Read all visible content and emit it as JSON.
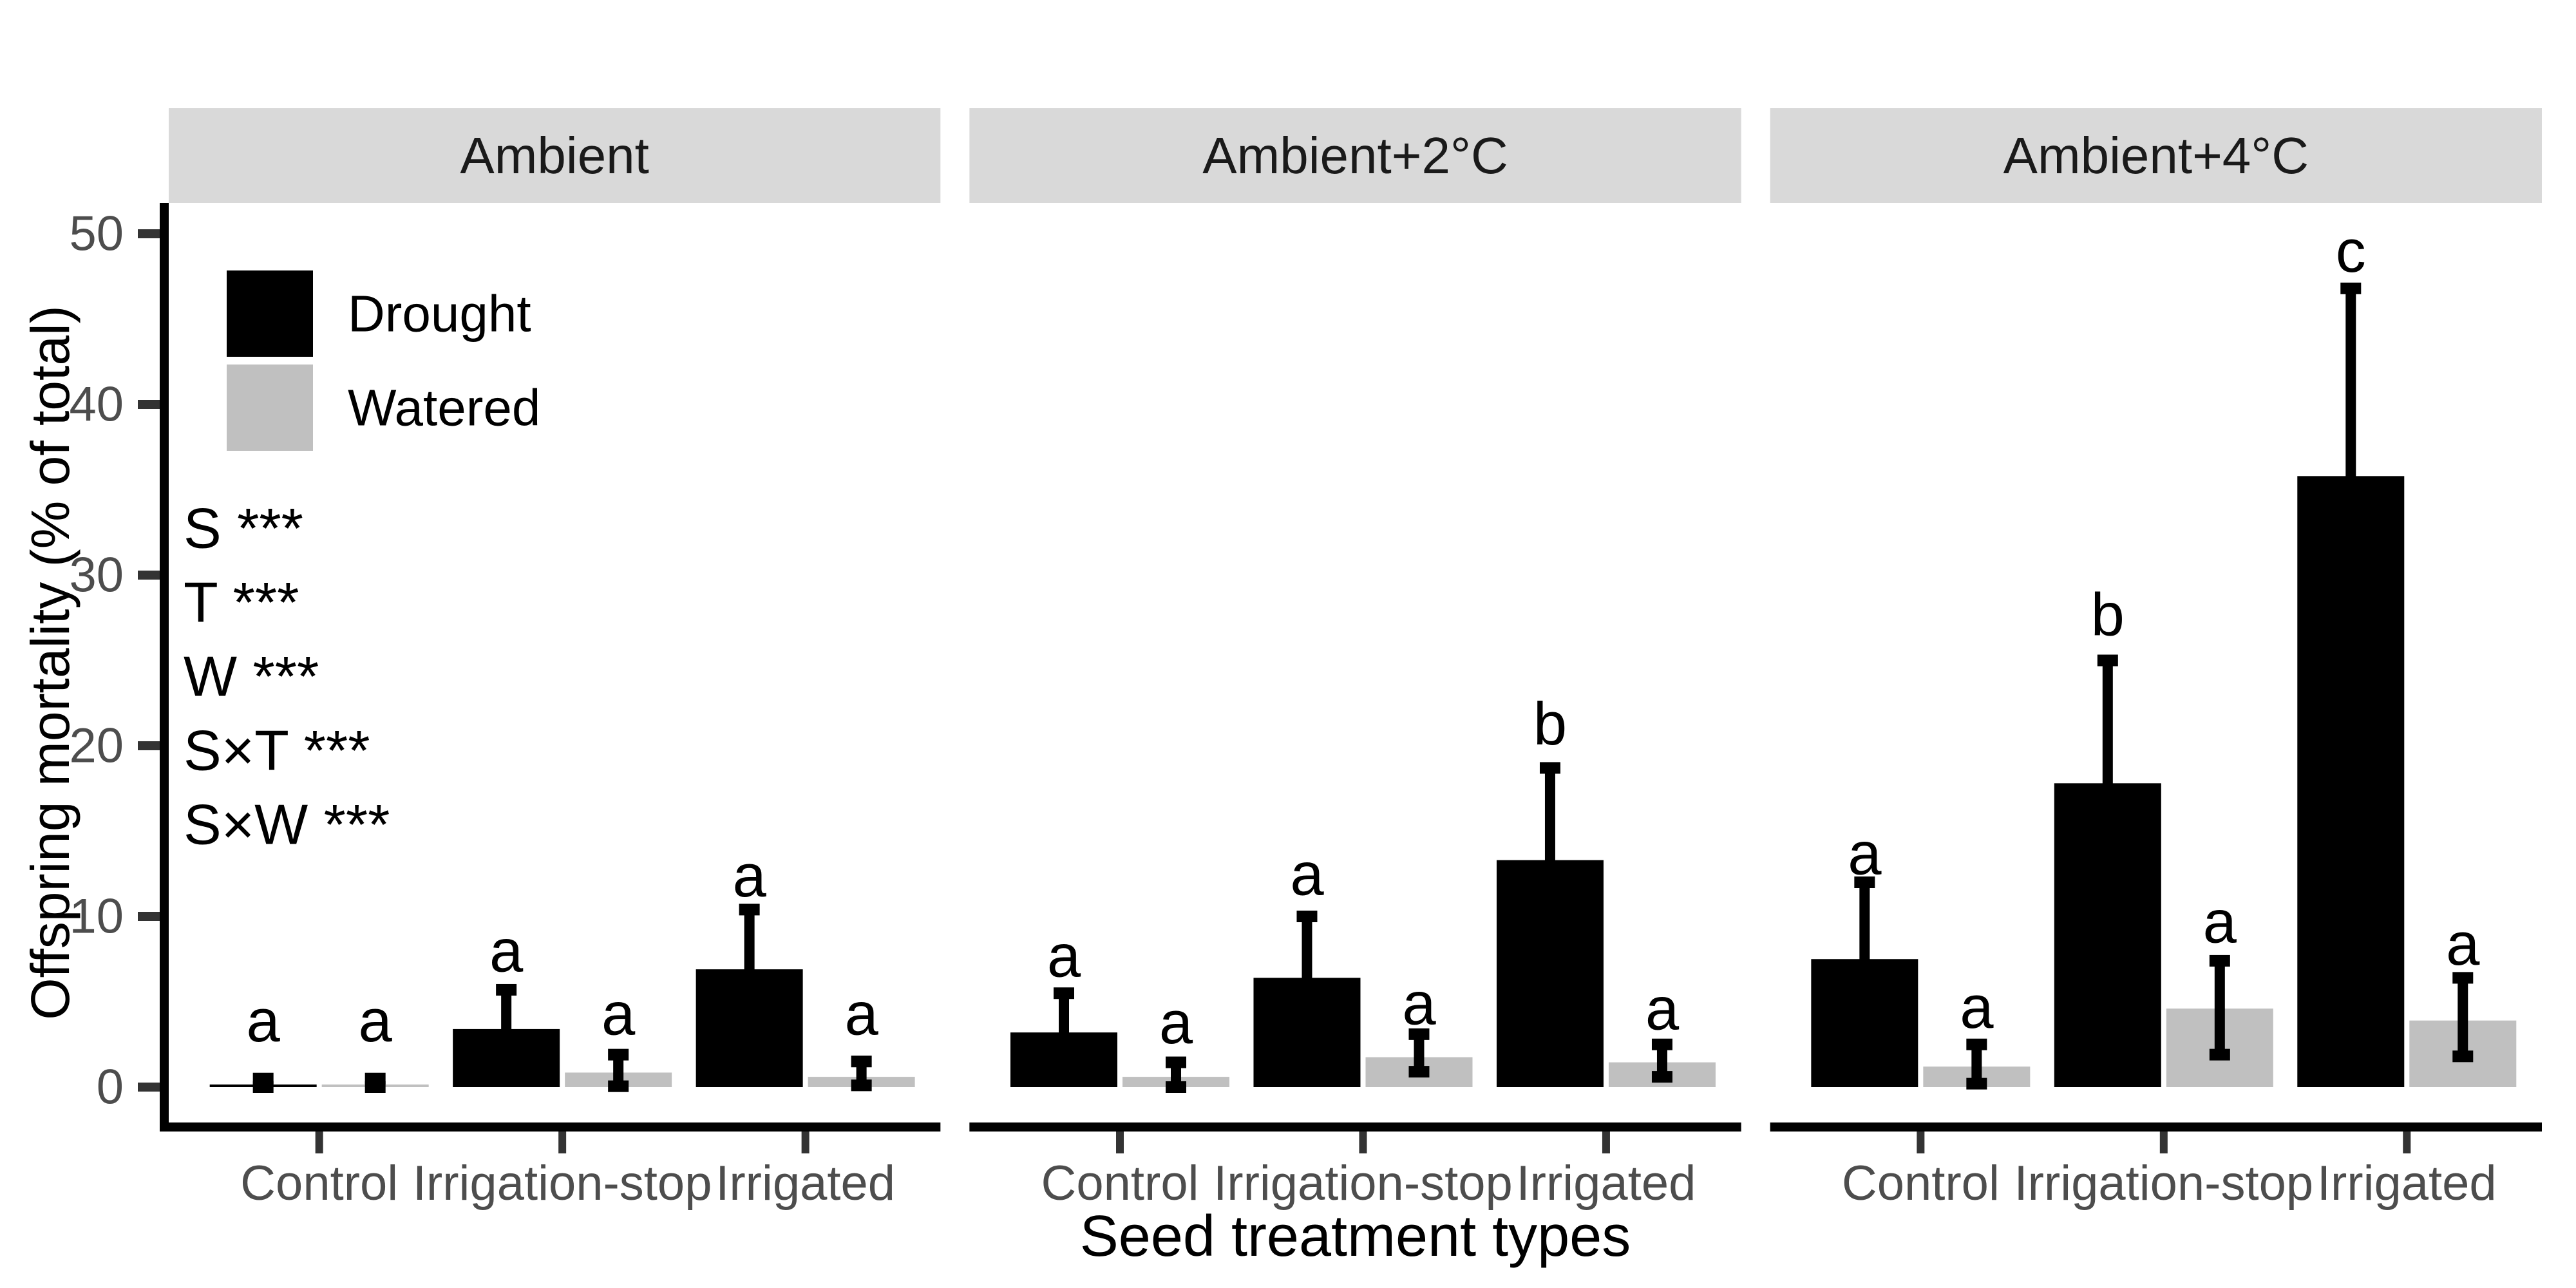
{
  "chart_data": {
    "type": "bar",
    "title": "",
    "xlabel": "Seed treatment types",
    "ylabel": "Offspring mortality (% of total)",
    "ylim": [
      0,
      50
    ],
    "yticks": [
      0,
      10,
      20,
      30,
      40,
      50
    ],
    "categories": [
      "Control",
      "Irrigation-stop",
      "Irrigated"
    ],
    "series": [
      "Drought",
      "Watered"
    ],
    "legend_position": "top-left-inside-first-panel",
    "grid": false,
    "annotations": [
      "S ***",
      "T ***",
      "W ***",
      "S×T ***",
      "S×W ***"
    ],
    "colors": {
      "Drought": "#000000",
      "Watered": "#c0c0c0",
      "strip_bg": "#d9d9d9",
      "strip_text": "#1a1a1a",
      "axis_text": "#4d4d4d",
      "axis_line": "#000000",
      "error_bar": "#000000",
      "sig_letter": "#000000"
    },
    "facets": [
      {
        "label": "Ambient",
        "groups": [
          {
            "category": "Control",
            "bars": [
              {
                "series": "Drought",
                "value": 0.15,
                "err_lo": 0.0,
                "err_hi": 0.5,
                "letter": "a",
                "letter_y": 3.9
              },
              {
                "series": "Watered",
                "value": 0.15,
                "err_lo": 0.0,
                "err_hi": 0.5,
                "letter": "a",
                "letter_y": 3.9
              }
            ]
          },
          {
            "category": "Irrigation-stop",
            "bars": [
              {
                "series": "Drought",
                "value": 3.4,
                "err_lo": 1.1,
                "err_hi": 5.7,
                "letter": "a",
                "letter_y": 8.0
              },
              {
                "series": "Watered",
                "value": 0.85,
                "err_lo": 0.05,
                "err_hi": 1.9,
                "letter": "a",
                "letter_y": 4.3
              }
            ]
          },
          {
            "category": "Irrigated",
            "bars": [
              {
                "series": "Drought",
                "value": 6.9,
                "err_lo": 3.4,
                "err_hi": 10.4,
                "letter": "a",
                "letter_y": 12.4
              },
              {
                "series": "Watered",
                "value": 0.6,
                "err_lo": 0.1,
                "err_hi": 1.5,
                "letter": "a",
                "letter_y": 4.3
              }
            ]
          }
        ]
      },
      {
        "label": "Ambient+2°C",
        "groups": [
          {
            "category": "Control",
            "bars": [
              {
                "series": "Drought",
                "value": 3.2,
                "err_lo": 0.9,
                "err_hi": 5.5,
                "letter": "a",
                "letter_y": 7.7
              },
              {
                "series": "Watered",
                "value": 0.6,
                "err_lo": 0.0,
                "err_hi": 1.45,
                "letter": "a",
                "letter_y": 3.8
              }
            ]
          },
          {
            "category": "Irrigation-stop",
            "bars": [
              {
                "series": "Drought",
                "value": 6.4,
                "err_lo": 2.8,
                "err_hi": 10.0,
                "letter": "a",
                "letter_y": 12.5
              },
              {
                "series": "Watered",
                "value": 1.75,
                "err_lo": 0.9,
                "err_hi": 3.1,
                "letter": "a",
                "letter_y": 4.9
              }
            ]
          },
          {
            "category": "Irrigated",
            "bars": [
              {
                "series": "Drought",
                "value": 13.3,
                "err_lo": 7.9,
                "err_hi": 18.7,
                "letter": "b",
                "letter_y": 21.3
              },
              {
                "series": "Watered",
                "value": 1.45,
                "err_lo": 0.6,
                "err_hi": 2.5,
                "letter": "a",
                "letter_y": 4.6
              }
            ]
          }
        ]
      },
      {
        "label": "Ambient+4°C",
        "groups": [
          {
            "category": "Control",
            "bars": [
              {
                "series": "Drought",
                "value": 7.5,
                "err_lo": 3.0,
                "err_hi": 12.0,
                "letter": "a",
                "letter_y": 13.7
              },
              {
                "series": "Watered",
                "value": 1.2,
                "err_lo": 0.2,
                "err_hi": 2.5,
                "letter": "a",
                "letter_y": 4.7
              }
            ]
          },
          {
            "category": "Irrigation-stop",
            "bars": [
              {
                "series": "Drought",
                "value": 17.8,
                "err_lo": 10.6,
                "err_hi": 25.0,
                "letter": "b",
                "letter_y": 27.7
              },
              {
                "series": "Watered",
                "value": 4.6,
                "err_lo": 1.9,
                "err_hi": 7.4,
                "letter": "a",
                "letter_y": 9.7
              }
            ]
          },
          {
            "category": "Irrigated",
            "bars": [
              {
                "series": "Drought",
                "value": 35.8,
                "err_lo": 24.8,
                "err_hi": 46.8,
                "letter": "c",
                "letter_y": 49.0
              },
              {
                "series": "Watered",
                "value": 3.9,
                "err_lo": 1.8,
                "err_hi": 6.4,
                "letter": "a",
                "letter_y": 8.4
              }
            ]
          }
        ]
      }
    ]
  }
}
